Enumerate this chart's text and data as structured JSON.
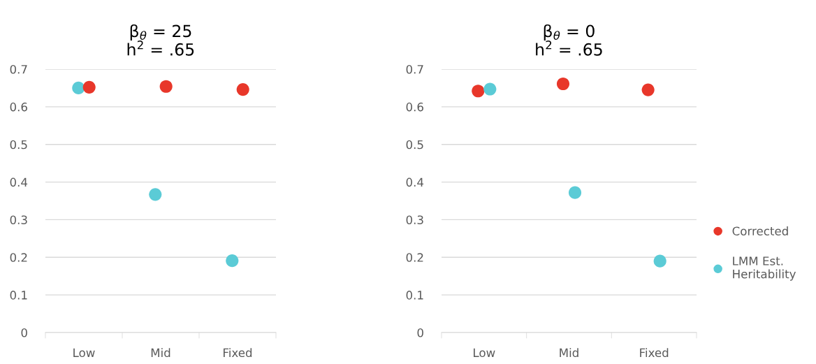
{
  "chart_data": [
    {
      "type": "scatter",
      "title": "β$_{θ}$ = 25\nh$^{2}$ = .65",
      "categories": [
        "Low",
        "Mid",
        "Fixed"
      ],
      "ylim": [
        0,
        0.7
      ],
      "yticks": [
        0,
        0.1,
        0.2,
        0.3,
        0.4,
        0.5,
        0.6,
        0.7
      ],
      "grid": "y",
      "marker": "circle",
      "series": [
        {
          "color": "#5bcbd6",
          "values": [
            0.65,
            0.367,
            0.191
          ]
        },
        {
          "color": "#e8372a",
          "values": [
            0.652,
            0.654,
            0.646
          ]
        }
      ]
    },
    {
      "type": "scatter",
      "title": "β$_{θ}$ = 0\nh$^{2}$ = .65",
      "categories": [
        "Low",
        "Mid",
        "Fixed"
      ],
      "ylim": [
        0,
        0.7
      ],
      "yticks": [
        0,
        0.1,
        0.2,
        0.3,
        0.4,
        0.5,
        0.6,
        0.7
      ],
      "grid": "y",
      "marker": "circle",
      "legend": "right",
      "series": [
        {
          "name": "Corrected",
          "color": "#e8372a",
          "values": [
            0.642,
            0.661,
            0.645
          ]
        },
        {
          "name": "LMM Est.\nHeritability",
          "color": "#5bcbd6",
          "values": [
            0.647,
            0.372,
            0.19
          ]
        }
      ]
    }
  ]
}
